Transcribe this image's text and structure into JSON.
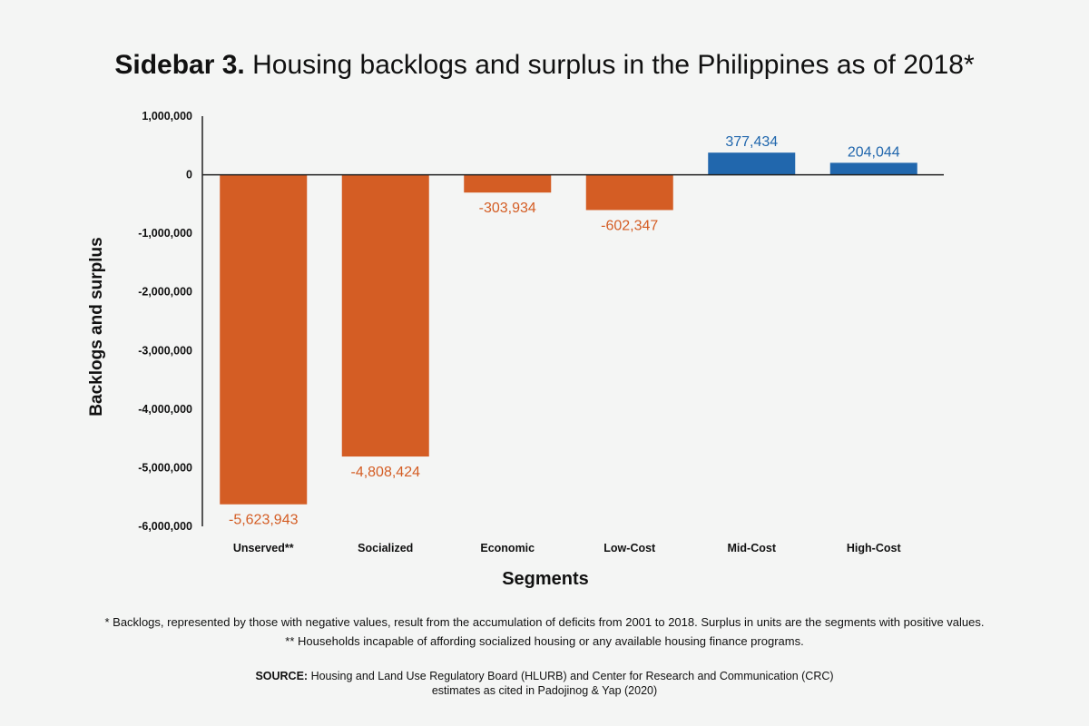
{
  "header": {
    "title_bold": "Sidebar 3.",
    "title_rest": "Housing backlogs and surplus in the Philippines as of 2018*"
  },
  "chart_data": {
    "type": "bar",
    "categories": [
      "Unserved**",
      "Socialized",
      "Economic",
      "Low-Cost",
      "Mid-Cost",
      "High-Cost"
    ],
    "values": [
      -5623943,
      -4808424,
      -303934,
      -602347,
      377434,
      204044
    ],
    "value_labels": [
      "-5,623,943",
      "-4,808,424",
      "-303,934",
      "-602,347",
      "377,434",
      "204,044"
    ],
    "xlabel": "Segments",
    "ylabel": "Backlogs and surplus",
    "ylim": [
      -6000000,
      1000000
    ],
    "yticks": [
      1000000,
      0,
      -1000000,
      -2000000,
      -3000000,
      -4000000,
      -5000000,
      -6000000
    ],
    "ytick_labels": [
      "1,000,000",
      "0",
      "-1,000,000",
      "-2,000,000",
      "-3,000,000",
      "-4,000,000",
      "-5,000,000",
      "-6,000,000"
    ],
    "grid": false,
    "colors": {
      "negative": "#d45d24",
      "positive": "#2167ad"
    }
  },
  "footnotes": {
    "note1": "* Backlogs, represented by those with negative values, result from the accumulation of deficits from 2001 to 2018. Surplus in units are the segments with positive values.",
    "note2": "** Households incapable of affording socialized housing or any available housing finance programs."
  },
  "source": {
    "label": "SOURCE:",
    "line1": "Housing and Land Use Regulatory Board (HLURB) and Center for Research and Communication (CRC)",
    "line2": "estimates as cited in Padojinog & Yap (2020)"
  }
}
